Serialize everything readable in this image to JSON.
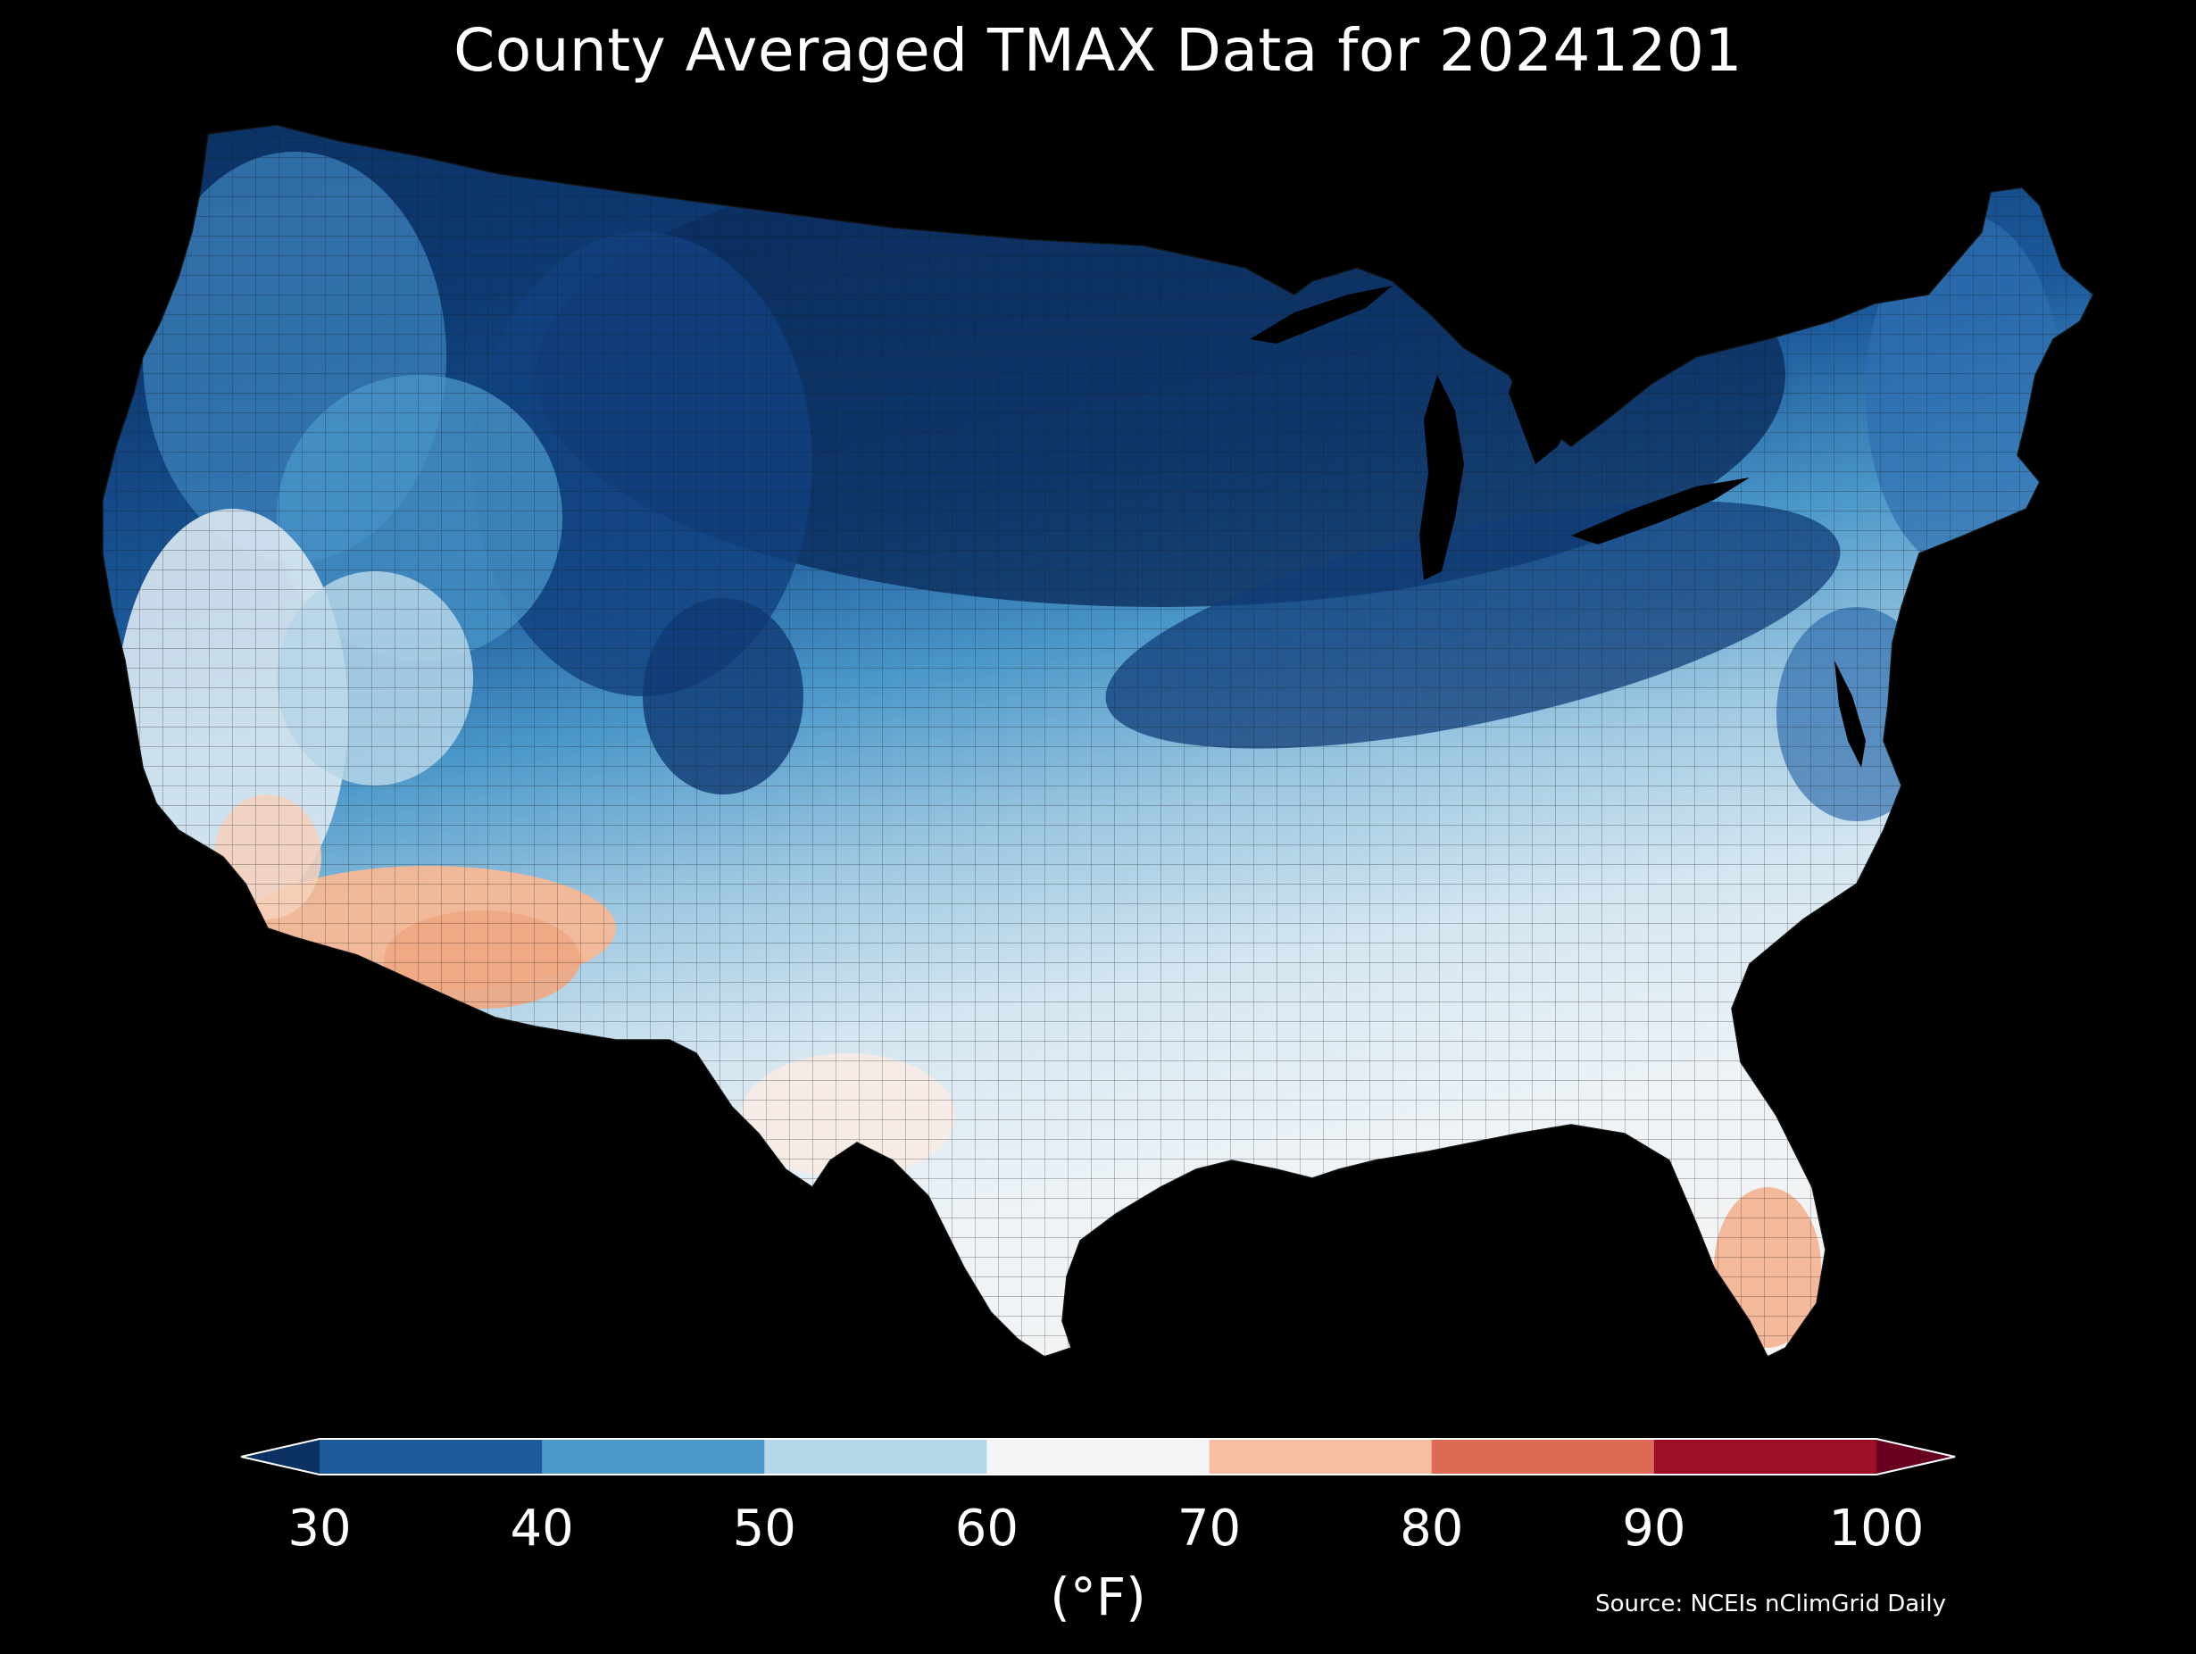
{
  "title": "County Averaged TMAX Data for 20241201",
  "colorbar": {
    "ticks": [
      "30",
      "40",
      "50",
      "60",
      "70",
      "80",
      "90",
      "100"
    ],
    "bins": [
      {
        "from": 30,
        "to": 40,
        "color": "#1c5a9c"
      },
      {
        "from": 40,
        "to": 50,
        "color": "#4a97c9"
      },
      {
        "from": 50,
        "to": 60,
        "color": "#b6d6e9"
      },
      {
        "from": 60,
        "to": 70,
        "color": "#f5f5f5"
      },
      {
        "from": 70,
        "to": 80,
        "color": "#f8bea2"
      },
      {
        "from": 80,
        "to": 90,
        "color": "#dc6a55"
      },
      {
        "from": 90,
        "to": 100,
        "color": "#9c0f27"
      }
    ],
    "under_color": "#0b3062",
    "over_color": "#67001f",
    "unit": "(°F)"
  },
  "source": "Source: NCEIs nClimGrid Daily",
  "colors": {
    "background": "#000000",
    "county_border": "#1a1a1a",
    "coldest": "#0b2d5c",
    "cold": "#1c5a9c",
    "cool": "#4a97c9",
    "mild": "#b6d6e9",
    "neutral": "#f2f2f2",
    "warm": "#f5b896"
  }
}
